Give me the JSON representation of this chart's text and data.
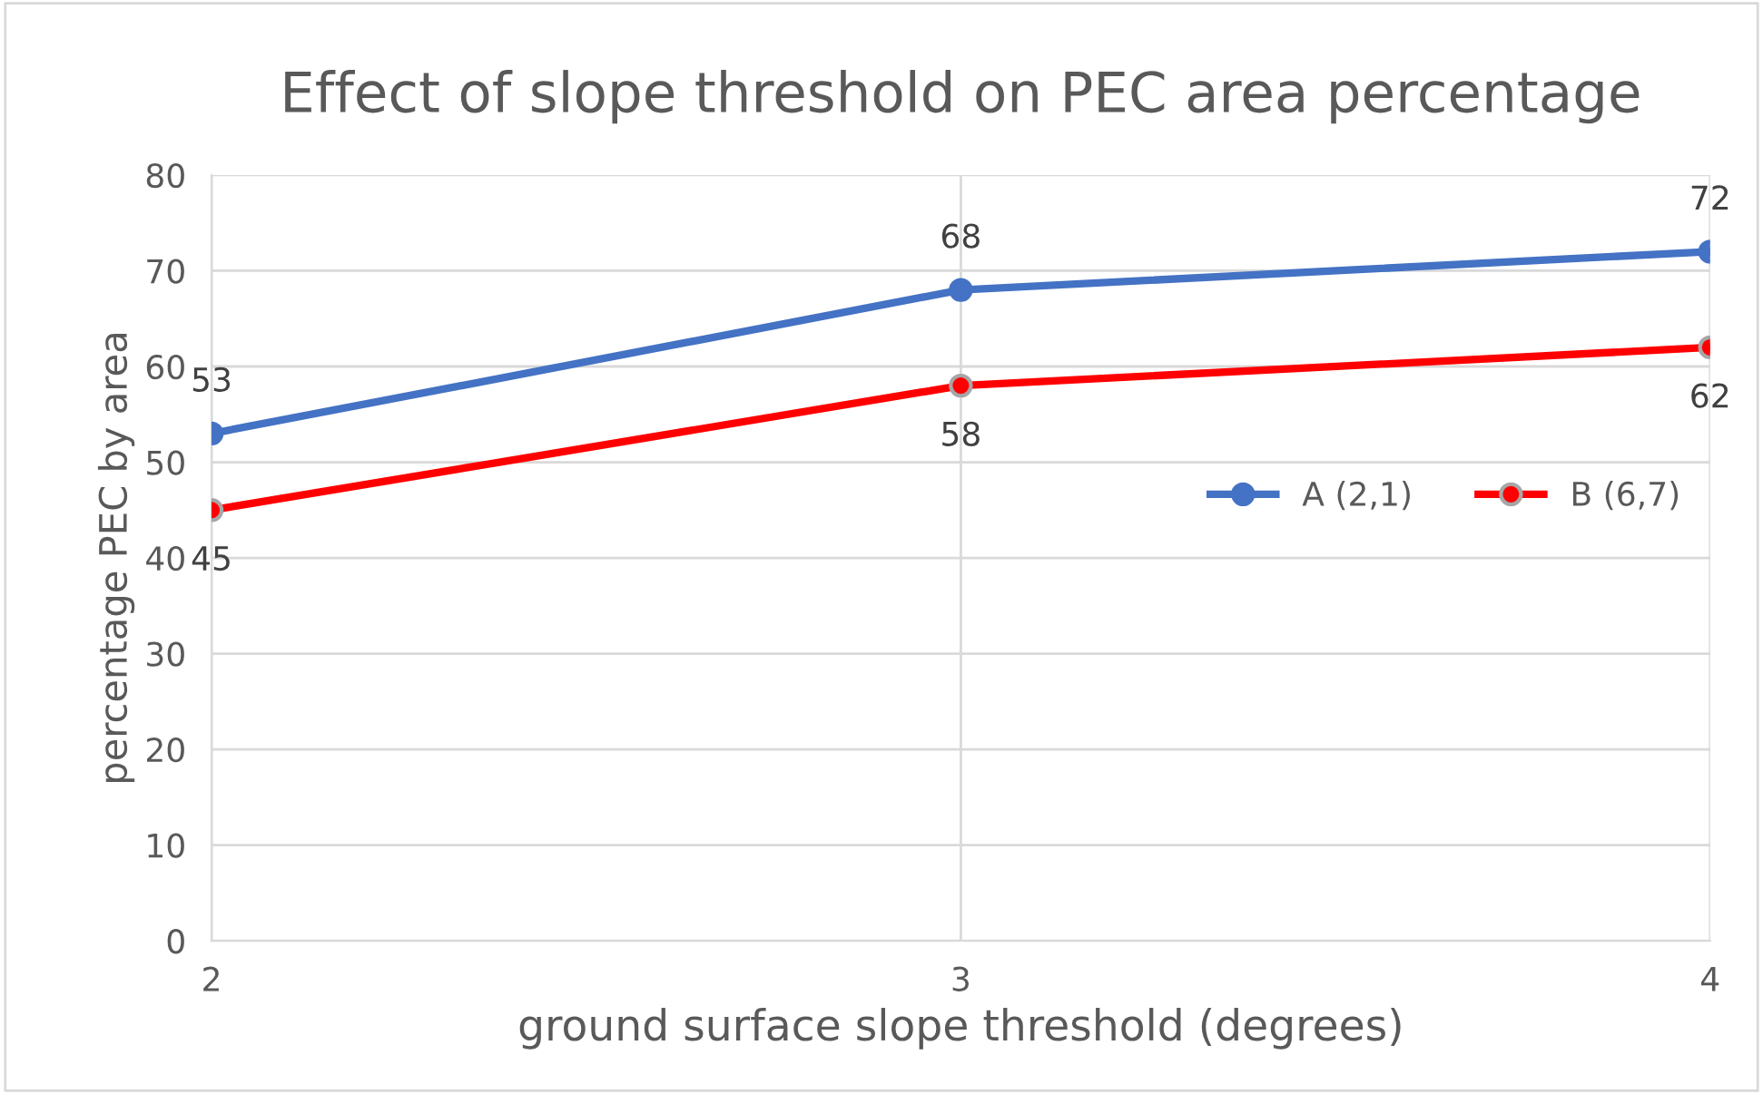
{
  "chart_data": {
    "type": "line",
    "title": "Effect of slope threshold on PEC area percentage",
    "xlabel": "ground surface slope threshold (degrees)",
    "ylabel": "percentage PEC by area",
    "x": [
      2,
      3,
      4
    ],
    "series": [
      {
        "name": "A (2,1)",
        "color": "#4472c4",
        "values": [
          53,
          68,
          72
        ]
      },
      {
        "name": "B (6,7)",
        "color": "#ff0000",
        "values": [
          45,
          58,
          62
        ]
      }
    ],
    "xlim": [
      2,
      4
    ],
    "xticks": [
      2,
      3,
      4
    ],
    "ylim": [
      0,
      80
    ],
    "yticks": [
      0,
      10,
      20,
      30,
      40,
      50,
      60,
      70,
      80
    ],
    "grid": true,
    "legend": "center right",
    "marker": "circle",
    "line_style": "solid",
    "data_labels": true
  }
}
